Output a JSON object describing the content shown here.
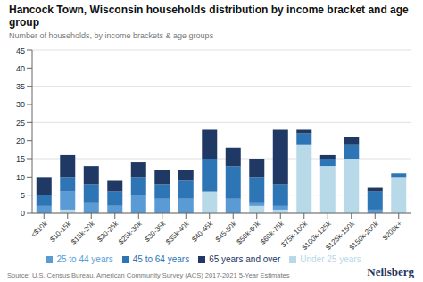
{
  "chart_data": {
    "type": "bar",
    "stacked": true,
    "grid": true,
    "legend": "bottom",
    "title": "Hancock Town, Wisconsin households distribution by income bracket and age group",
    "subtitle": "Number of households, by income brackets & age groups",
    "annotations": [
      "Source: U.S. Census Bureau, American Community Survey (ACS) 2017-2021 5-Year Estimates",
      "Neilsberg"
    ],
    "categories": [
      "<$10k",
      "$10-15k",
      "$15k-20k",
      "$20-25k",
      "$25k-30k",
      "$30-35k",
      "$35k-40k",
      "$40-45k",
      "$45-50k",
      "$50k-60k",
      "$60k-75k",
      "$75k-100k",
      "$100k-125k",
      "$125k-150k",
      "$150k-200k",
      "$200k+"
    ],
    "series": [
      {
        "name": "Under 25 years",
        "color": "#b8d9e8",
        "values": [
          0,
          1,
          0,
          0,
          0,
          0,
          0,
          6,
          0,
          2,
          1,
          19,
          13,
          15,
          0,
          10
        ]
      },
      {
        "name": "25 to 44 years",
        "color": "#5b9bd5",
        "values": [
          2,
          5,
          3,
          2,
          5,
          4,
          4,
          0,
          4,
          1,
          1,
          0,
          0,
          0,
          1,
          0
        ]
      },
      {
        "name": "45 to 64 years",
        "color": "#2e75b6",
        "values": [
          3,
          4,
          5,
          4,
          5,
          4,
          5,
          9,
          9,
          7,
          6,
          3,
          2,
          4,
          5,
          1
        ]
      },
      {
        "name": "65 years and over",
        "color": "#1f3864",
        "values": [
          5,
          6,
          5,
          3,
          4,
          4,
          3,
          8,
          5,
          5,
          15,
          1,
          1,
          2,
          1,
          0
        ]
      }
    ],
    "ylim": [
      0,
      45
    ],
    "yticks": [
      0,
      5,
      10,
      15,
      20,
      25,
      30,
      35,
      40,
      45
    ]
  }
}
